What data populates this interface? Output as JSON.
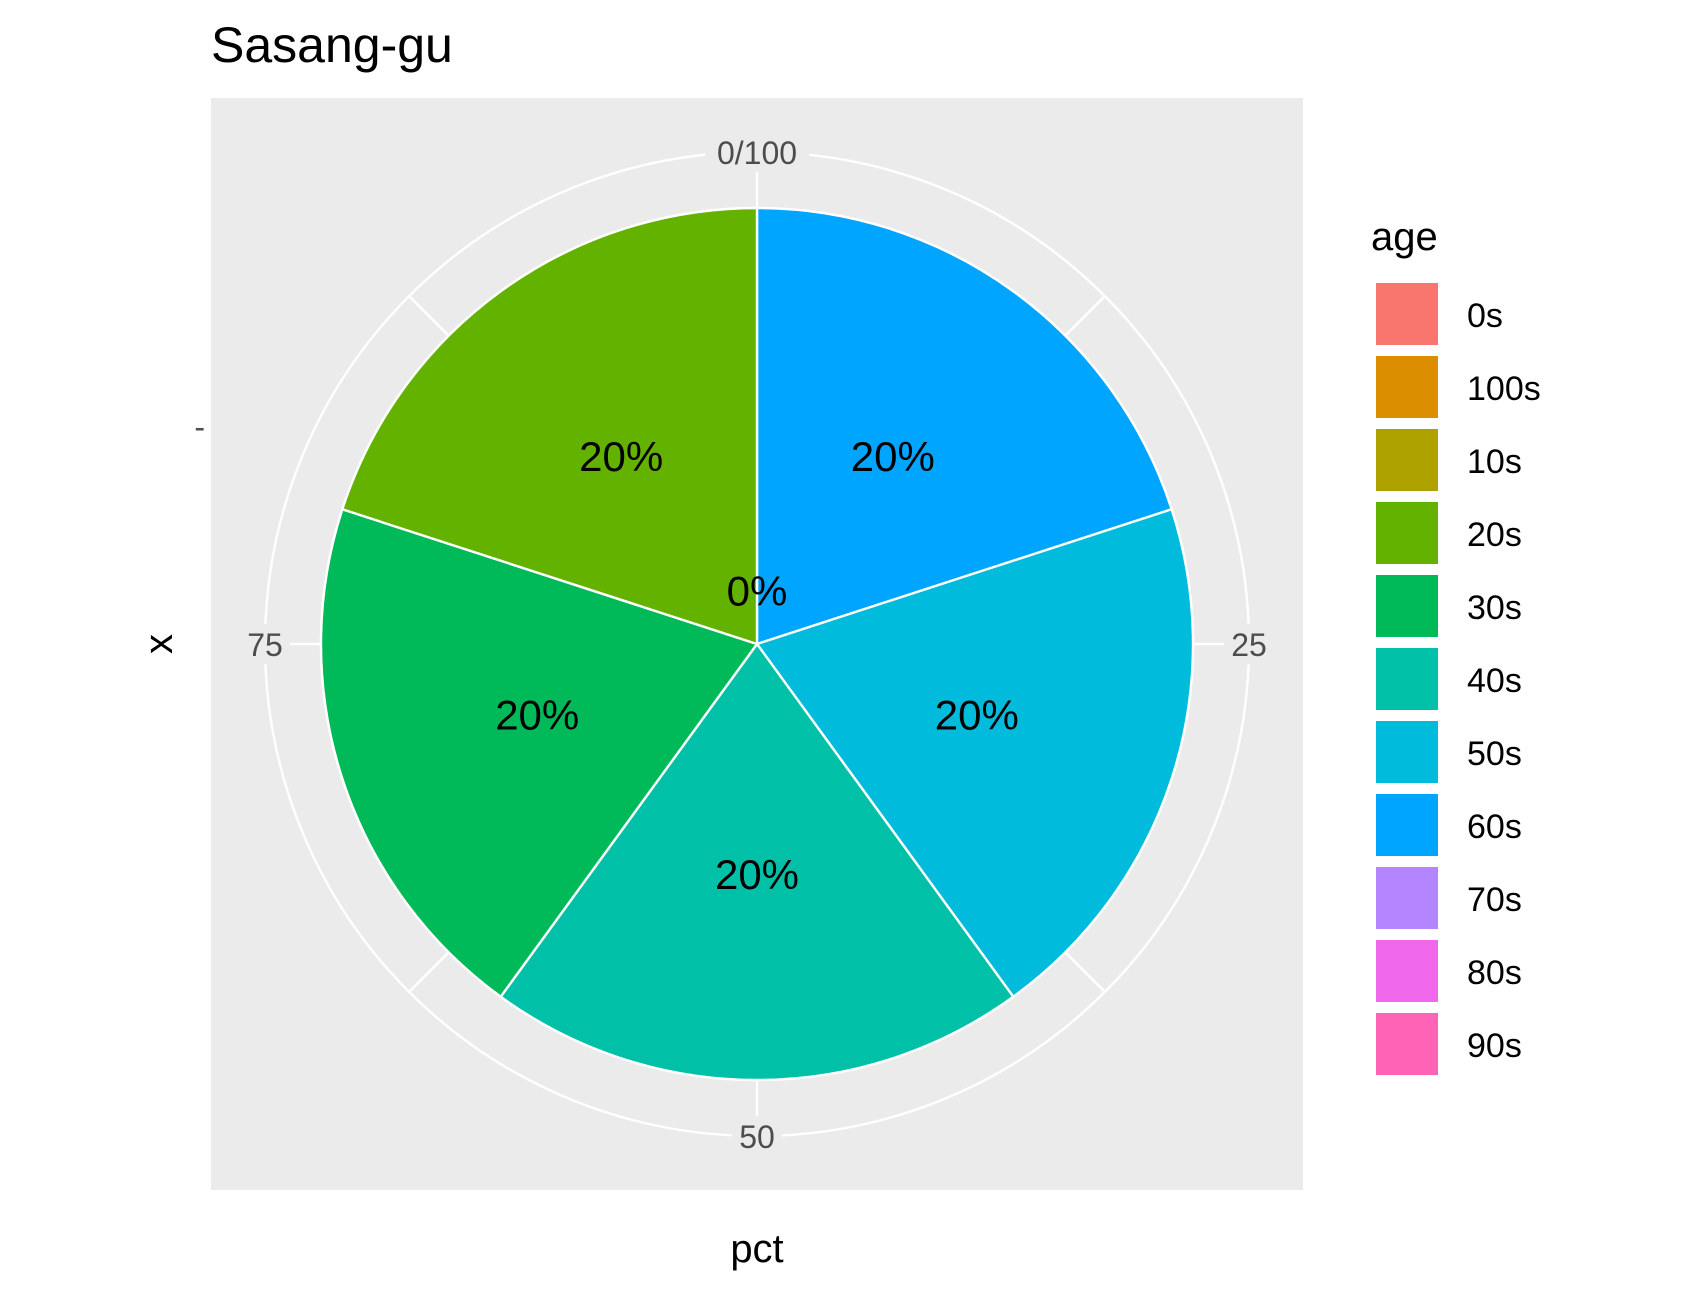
{
  "chart_data": {
    "type": "pie",
    "title": "Sasang-gu",
    "xlabel": "pct",
    "ylabel": "x",
    "y_tick_label": "-",
    "angular_ticks": [
      {
        "value": 0,
        "label": "0/100"
      },
      {
        "value": 25,
        "label": "25"
      },
      {
        "value": 50,
        "label": "50"
      },
      {
        "value": 75,
        "label": "75"
      }
    ],
    "slices": [
      {
        "category": "100s",
        "value": 0,
        "label": "0%",
        "color": "#DB8E00"
      },
      {
        "category": "60s",
        "value": 20,
        "label": "20%",
        "color": "#00A5FF"
      },
      {
        "category": "50s",
        "value": 20,
        "label": "20%",
        "color": "#00BBDB"
      },
      {
        "category": "40s",
        "value": 20,
        "label": "20%",
        "color": "#00C1A7"
      },
      {
        "category": "30s",
        "value": 20,
        "label": "20%",
        "color": "#00BA5A"
      },
      {
        "category": "20s",
        "value": 20,
        "label": "20%",
        "color": "#64B200"
      }
    ],
    "legend": {
      "title": "age",
      "position": "right",
      "items": [
        {
          "label": "0s",
          "color": "#F8766D"
        },
        {
          "label": "100s",
          "color": "#DB8E00"
        },
        {
          "label": "10s",
          "color": "#AEA200"
        },
        {
          "label": "20s",
          "color": "#64B200"
        },
        {
          "label": "30s",
          "color": "#00BA5A"
        },
        {
          "label": "40s",
          "color": "#00C1A7"
        },
        {
          "label": "50s",
          "color": "#00BBDB"
        },
        {
          "label": "60s",
          "color": "#00A5FF"
        },
        {
          "label": "70s",
          "color": "#B385FF"
        },
        {
          "label": "80s",
          "color": "#EF67EB"
        },
        {
          "label": "90s",
          "color": "#FF63B6"
        }
      ]
    },
    "panel_background": "#EBEBEB",
    "grid_color": "#FFFFFF",
    "grid": true
  }
}
